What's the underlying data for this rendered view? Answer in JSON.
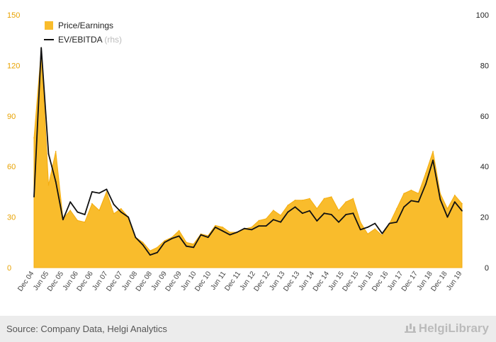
{
  "chart_data": {
    "type": "area",
    "series": [
      {
        "name": "Price/Earnings",
        "axis": "left",
        "render": "area",
        "color": "#f9bc2c",
        "values": [
          77,
          129,
          49,
          69,
          29,
          34,
          28,
          27,
          38,
          34,
          45,
          32,
          35,
          30,
          18,
          15,
          10,
          12,
          16,
          18,
          22,
          15,
          14,
          20,
          19,
          25,
          24,
          21,
          21,
          23,
          24,
          28,
          29,
          34,
          31,
          37,
          40,
          40,
          41,
          35,
          41,
          42,
          34,
          39,
          41,
          27,
          20,
          23,
          19,
          26,
          35,
          44,
          46,
          44,
          56,
          69,
          44,
          35,
          43,
          38
        ]
      },
      {
        "name": "EV/EBITDA",
        "name_note": "(rhs)",
        "axis": "right",
        "render": "line",
        "color": "#111111",
        "values": [
          28,
          87,
          45,
          34,
          19,
          26,
          22,
          21,
          30,
          29.5,
          31,
          25,
          22,
          20,
          12,
          9,
          5,
          6,
          10,
          11.5,
          12.5,
          8.5,
          8,
          13,
          12,
          16,
          14.5,
          13,
          14,
          15.5,
          15,
          16.5,
          16.5,
          19,
          18,
          22,
          24,
          21.5,
          22.5,
          18.5,
          21.5,
          21,
          18,
          21,
          21.5,
          15,
          16,
          17.5,
          13.5,
          17.5,
          18,
          24,
          26.5,
          26,
          33,
          42.5,
          27,
          20,
          26,
          22.5
        ]
      }
    ],
    "x_ticks": [
      "Dec 04",
      "Jun 05",
      "Dec 05",
      "Jun 06",
      "Dec 06",
      "Jun 07",
      "Dec 07",
      "Jun 08",
      "Dec 08",
      "Jun 09",
      "Dec 09",
      "Jun 10",
      "Dec 10",
      "Jun 11",
      "Dec 11",
      "Jun 12",
      "Dec 12",
      "Jun 13",
      "Dec 13",
      "Jun 14",
      "Dec 14",
      "Jun 15",
      "Dec 15",
      "Jun 16",
      "Dec 16",
      "Jun 17",
      "Dec 17",
      "Jun 18",
      "Dec 18",
      "Jun 19"
    ],
    "y_left": {
      "min": 0,
      "max": 150,
      "ticks": [
        "0",
        "30",
        "60",
        "90",
        "120",
        "150"
      ],
      "color": "#e8a200"
    },
    "y_right": {
      "min": 0,
      "max": 100,
      "ticks": [
        "0",
        "20",
        "40",
        "60",
        "80",
        "100"
      ]
    },
    "grid": false,
    "legend_position": "top-left"
  },
  "footer": {
    "source": "Source: Company Data, Helgi Analytics",
    "brand": "HelgiLibrary"
  }
}
